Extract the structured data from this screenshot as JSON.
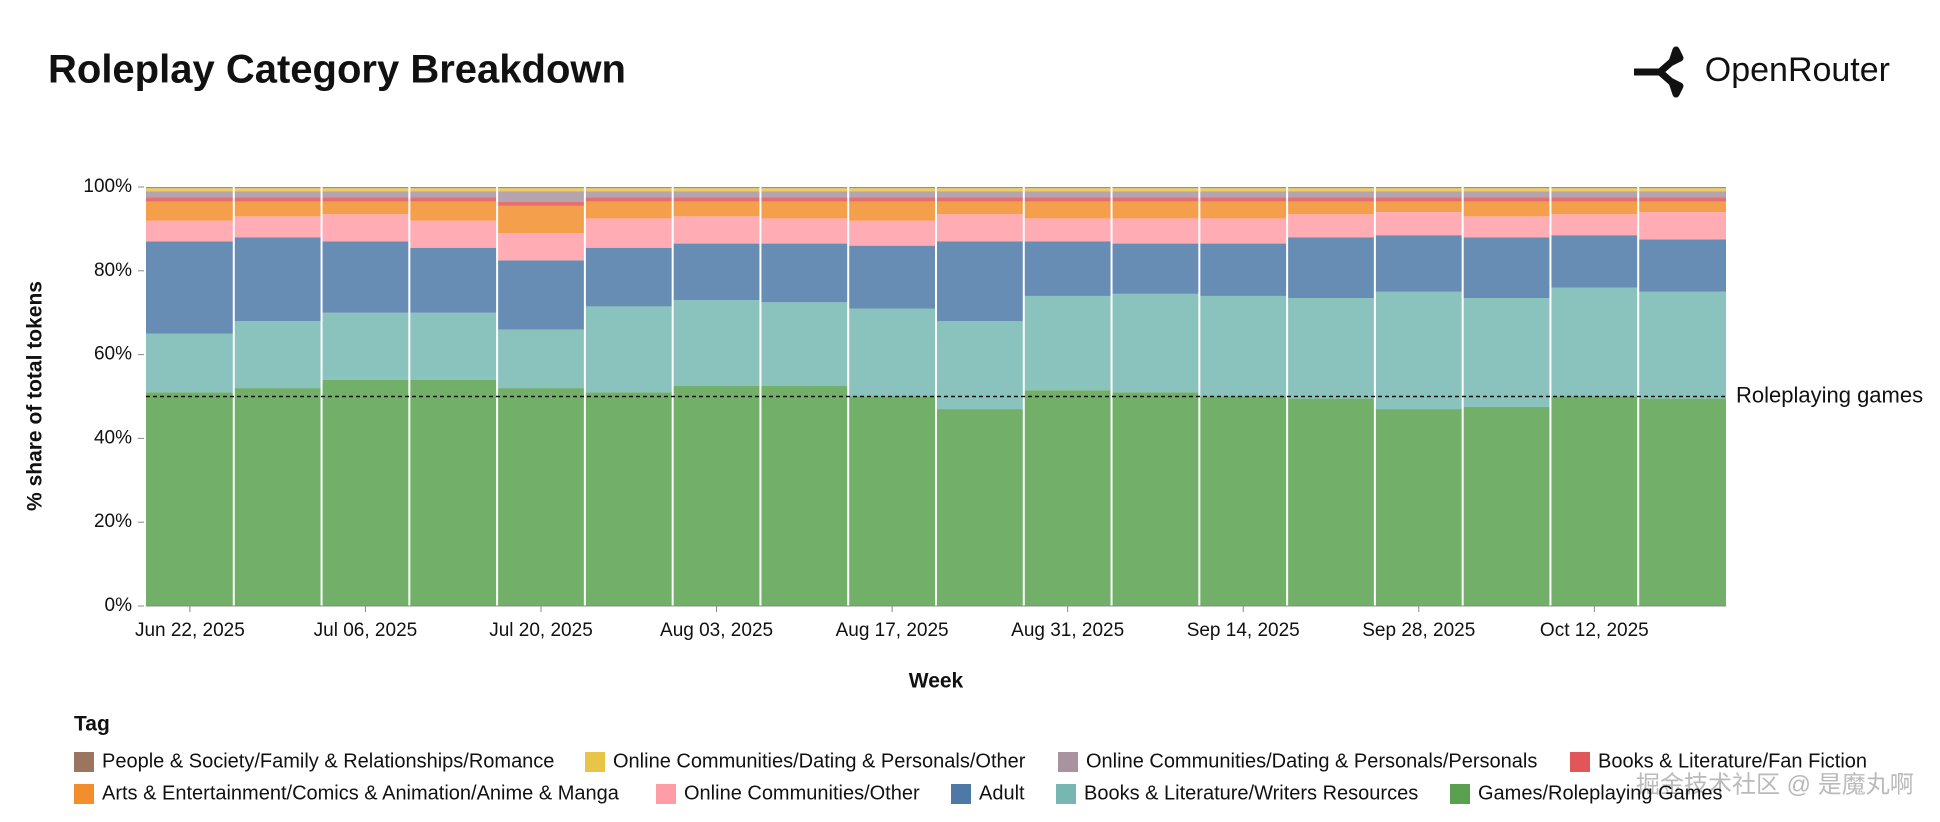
{
  "brand": "OpenRouter",
  "watermark": "掘金技术社区 @ 是魔丸啊",
  "chart_data": {
    "type": "stacked_bar",
    "title": "Roleplay Category Breakdown",
    "x_label": "Week",
    "y_label": "% share of total tokens",
    "legend_title": "Tag",
    "reference_line": {
      "value": 50,
      "label": "Roleplaying games"
    },
    "categories": [
      "Jun 22, 2025",
      null,
      "Jul 06, 2025",
      null,
      "Jul 20, 2025",
      null,
      "Aug 03, 2025",
      null,
      "Aug 17, 2025",
      null,
      "Aug 31, 2025",
      null,
      "Sep 14, 2025",
      null,
      "Sep 28, 2025",
      null,
      "Oct 12, 2025",
      null
    ],
    "ylim": [
      0,
      100
    ],
    "yticks": [
      {
        "value": 0,
        "label": "0%"
      },
      {
        "value": 20,
        "label": "20%"
      },
      {
        "value": 40,
        "label": "40%"
      },
      {
        "value": 60,
        "label": "60%"
      },
      {
        "value": 80,
        "label": "80%"
      },
      {
        "value": 100,
        "label": "100%"
      }
    ],
    "series": [
      {
        "name": "People & Society/Family & Relationships/Romance",
        "color": "#9c7560",
        "values": [
          0.3,
          0.3,
          0.3,
          0.3,
          0.3,
          0.3,
          0.3,
          0.3,
          0.3,
          0.3,
          0.3,
          0.3,
          0.3,
          0.3,
          0.3,
          0.3,
          0.3,
          0.3
        ]
      },
      {
        "name": "Online Communities/Dating & Personals/Other",
        "color": "#e8c547",
        "values": [
          0.7,
          0.7,
          0.7,
          0.7,
          0.7,
          0.7,
          0.7,
          0.7,
          0.7,
          0.7,
          0.7,
          0.7,
          0.7,
          0.7,
          0.7,
          0.7,
          0.7,
          0.7
        ]
      },
      {
        "name": "Online Communities/Dating & Personals/Personals",
        "color": "#a8939f",
        "values": [
          1.5,
          1.5,
          1.5,
          1.5,
          2.5,
          1.5,
          1.5,
          1.5,
          1.5,
          1.5,
          1.5,
          1.5,
          1.5,
          1.5,
          1.5,
          1.5,
          1.5,
          1.5
        ]
      },
      {
        "name": "Books & Literature/Fan Fiction",
        "color": "#e15759",
        "values": [
          1,
          1,
          1,
          1,
          1,
          1,
          1,
          1,
          1,
          1,
          1,
          1,
          1,
          1,
          1,
          1,
          1,
          1
        ]
      },
      {
        "name": "Arts & Entertainment/Comics & Animation/Anime & Manga",
        "color": "#f28e2b",
        "values": [
          4.5,
          3.5,
          3,
          4.5,
          6.5,
          4,
          3.5,
          4,
          4.5,
          3,
          4,
          4,
          4,
          3,
          2.5,
          3.5,
          3,
          2.5
        ]
      },
      {
        "name": "Online Communities/Other",
        "color": "#ff9da7",
        "values": [
          5,
          5,
          6.5,
          6.5,
          6.5,
          7,
          6.5,
          6,
          6,
          6.5,
          5.5,
          6,
          6,
          5.5,
          5.5,
          5,
          5,
          6.5
        ]
      },
      {
        "name": "Adult",
        "color": "#4e79a7",
        "values": [
          22,
          20,
          17,
          15.5,
          16.5,
          14,
          13.5,
          14,
          15,
          19,
          13,
          12,
          12.5,
          14.5,
          13.5,
          14.5,
          12.5,
          12.5
        ]
      },
      {
        "name": "Books & Literature/Writers Resources",
        "color": "#76b7b2",
        "values": [
          14,
          16,
          16,
          16,
          14,
          20.5,
          20.5,
          20,
          21,
          21,
          22.5,
          23.5,
          24,
          24,
          28,
          26,
          26,
          25.5
        ]
      },
      {
        "name": "Games/Roleplaying Games",
        "color": "#59a14f",
        "values": [
          51,
          52,
          54,
          54,
          52,
          51,
          52.5,
          52.5,
          50,
          47,
          51.5,
          51,
          50,
          49.5,
          47,
          47.5,
          50,
          49.5
        ]
      }
    ]
  }
}
